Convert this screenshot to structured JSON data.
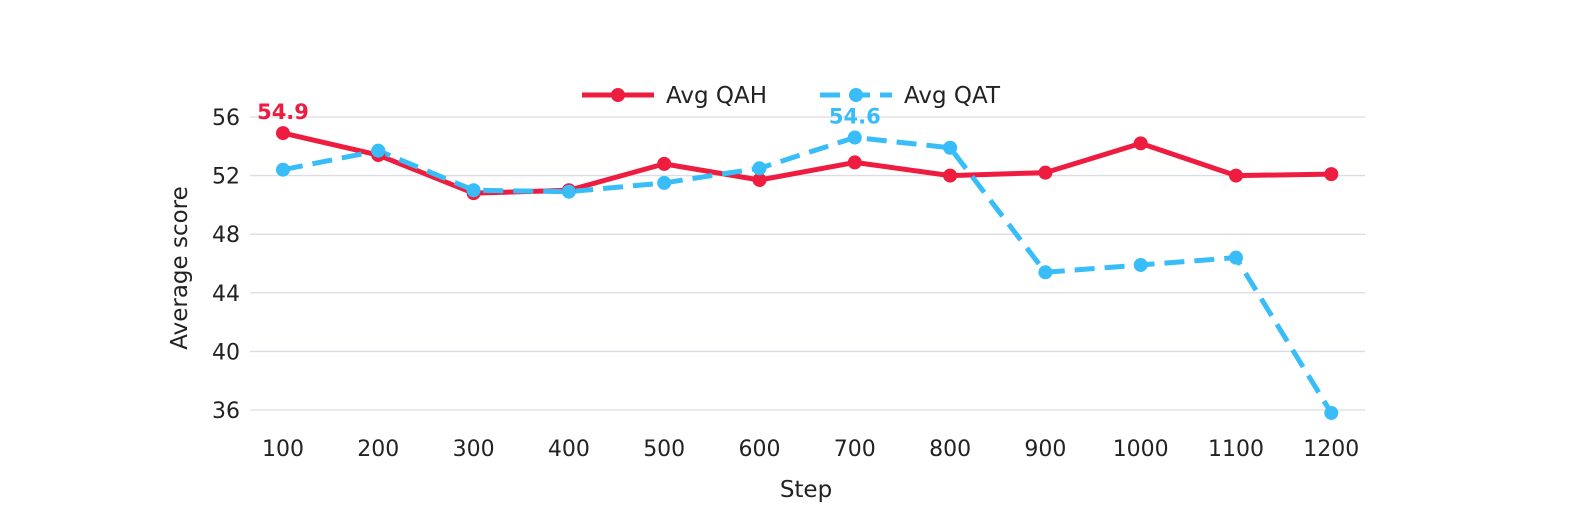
{
  "chart_data": {
    "type": "line",
    "xlabel": "Step",
    "ylabel": "Average score",
    "categories": [
      "100",
      "200",
      "300",
      "400",
      "500",
      "600",
      "700",
      "800",
      "900",
      "1000",
      "1100",
      "1200"
    ],
    "yticks": [
      "36",
      "40",
      "44",
      "48",
      "52",
      "56"
    ],
    "ylim": [
      34.5,
      57.5
    ],
    "grid": "horizontal",
    "legend_position": "top-center",
    "series": [
      {
        "name": "Avg QAH",
        "color": "#ee1c3f",
        "line_style": "solid",
        "values": [
          54.9,
          53.4,
          50.8,
          51.0,
          52.8,
          51.7,
          52.9,
          52.0,
          52.2,
          54.2,
          52.0,
          52.1
        ]
      },
      {
        "name": "Avg QAT",
        "color": "#38bdf8",
        "line_style": "dashed",
        "values": [
          52.4,
          53.7,
          51.0,
          50.9,
          51.5,
          52.5,
          54.6,
          53.9,
          45.4,
          45.9,
          46.4,
          35.8
        ]
      }
    ],
    "annotations": [
      {
        "series": 0,
        "index": 0,
        "text": "54.9"
      },
      {
        "series": 1,
        "index": 6,
        "text": "54.6"
      }
    ]
  }
}
